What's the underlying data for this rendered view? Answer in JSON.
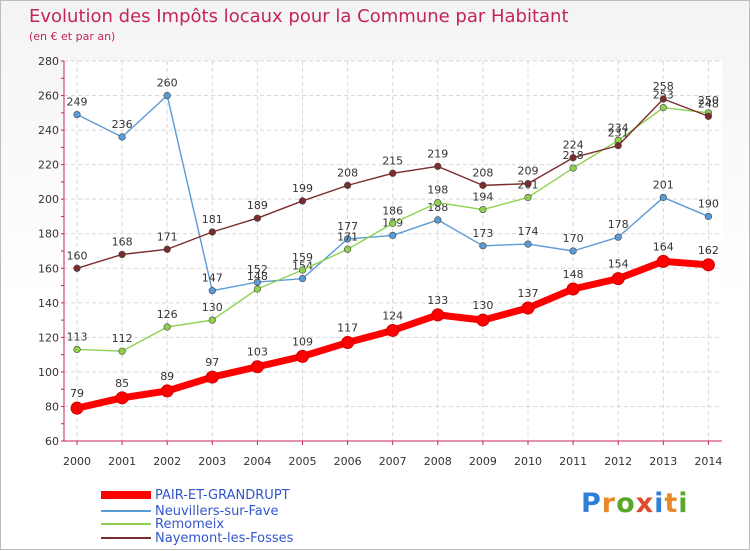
{
  "header": {
    "title": "Evolution des Impôts locaux pour la Commune par Habitant",
    "subtitle": "(en € et par an)"
  },
  "logo": {
    "text": "Proxiti"
  },
  "chart_data": {
    "type": "line",
    "title": "Evolution des Impôts locaux pour la Commune par Habitant",
    "subtitle": "(en € et par an)",
    "categories": [
      "2000",
      "2001",
      "2002",
      "2003",
      "2004",
      "2005",
      "2006",
      "2007",
      "2008",
      "2009",
      "2010",
      "2011",
      "2012",
      "2013",
      "2014"
    ],
    "ylim": [
      60,
      280
    ],
    "yticks": [
      60,
      80,
      100,
      120,
      140,
      160,
      180,
      200,
      220,
      240,
      260,
      280
    ],
    "grid": true,
    "legend_position": "bottom-left",
    "series": [
      {
        "name": "PAIR-ET-GRANDRUPT",
        "color": "#ff0000",
        "values": [
          79,
          85,
          89,
          97,
          103,
          109,
          117,
          124,
          133,
          130,
          137,
          148,
          154,
          164,
          162
        ]
      },
      {
        "name": "Neuvillers-sur-Fave",
        "color": "#5b9bd5",
        "values": [
          249,
          236,
          260,
          147,
          152,
          154,
          177,
          179,
          188,
          173,
          174,
          170,
          178,
          201,
          190
        ]
      },
      {
        "name": "Remomeix",
        "color": "#8fd14f",
        "values": [
          113,
          112,
          126,
          130,
          148,
          159,
          171,
          186,
          198,
          194,
          201,
          218,
          234,
          253,
          250
        ]
      },
      {
        "name": "Nayemont-les-Fosses",
        "color": "#7b2c2c",
        "values": [
          160,
          168,
          171,
          181,
          189,
          199,
          208,
          215,
          219,
          208,
          209,
          224,
          231,
          258,
          248
        ]
      }
    ]
  }
}
